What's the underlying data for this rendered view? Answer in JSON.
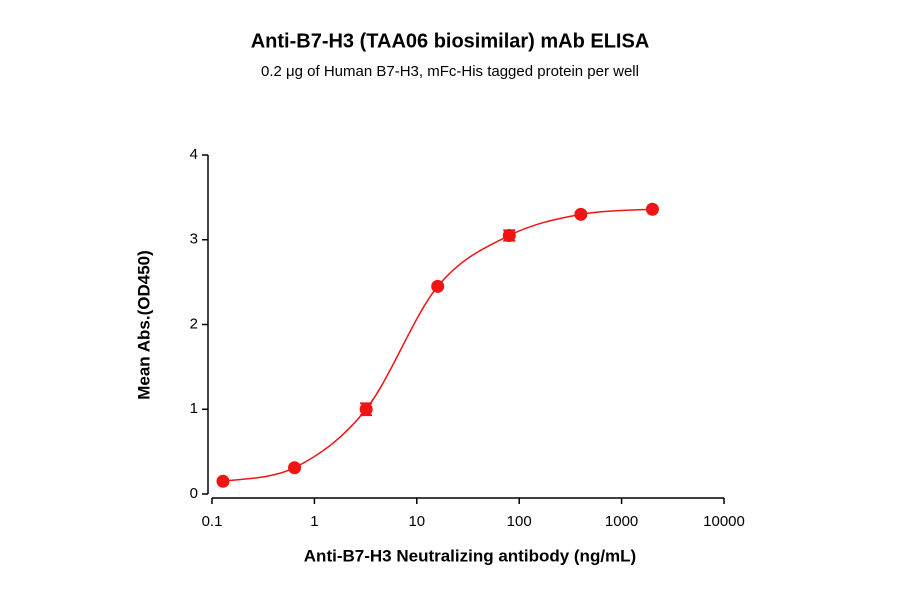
{
  "chart_data": {
    "type": "scatter",
    "title": "Anti-B7-H3 (TAA06 biosimilar) mAb ELISA",
    "subtitle": "0.2 μg of Human B7-H3, mFc-His tagged protein per well",
    "x_label": "Anti-B7-H3 Neutralizing antibody (ng/mL)",
    "y_label": "Mean Abs.(OD450)",
    "x": [
      0.128,
      0.64,
      3.2,
      16,
      80,
      400,
      2000
    ],
    "values": [
      0.15,
      0.31,
      1.0,
      2.45,
      3.05,
      3.3,
      3.36
    ],
    "errors": [
      null,
      null,
      0.07,
      null,
      0.06,
      null,
      null
    ],
    "color": "#f01414",
    "xscale": "log",
    "xlim": [
      0.1,
      10000
    ],
    "xticks": [
      0.1,
      1,
      10,
      100,
      1000,
      10000
    ],
    "ylim": [
      0,
      4
    ],
    "yticks": [
      0,
      1,
      2,
      3,
      4
    ],
    "grid": false
  }
}
